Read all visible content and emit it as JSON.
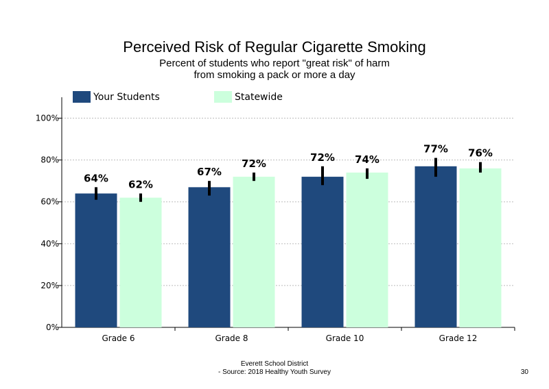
{
  "title": "Perceived Risk of Regular Cigarette Smoking",
  "subtitle_lines": [
    "Percent of students  who report \"great risk\" of harm",
    "from smoking  a pack or more  a day"
  ],
  "footer": {
    "line1": "Everett School District",
    "line2": "- Source: 2018 Healthy  Youth Survey"
  },
  "page_number": "30",
  "colors": {
    "your_students": "#1f497d",
    "statewide": "#ccffdd",
    "error_bar": "#000000",
    "grid": "#bbbbbb"
  },
  "chart_data": {
    "type": "bar",
    "categories": [
      "Grade 6",
      "Grade 8",
      "Grade 10",
      "Grade 12"
    ],
    "series": [
      {
        "name": "Your Students",
        "values": [
          64,
          67,
          72,
          77
        ],
        "labels": [
          "64%",
          "67%",
          "72%",
          "77%"
        ],
        "error_low": [
          61,
          63,
          68,
          72
        ],
        "error_high": [
          67,
          70,
          77,
          81
        ]
      },
      {
        "name": "Statewide",
        "values": [
          62,
          72,
          74,
          76
        ],
        "labels": [
          "62%",
          "72%",
          "74%",
          "76%"
        ],
        "error_low": [
          60,
          70,
          71,
          74
        ],
        "error_high": [
          64,
          74,
          76,
          79
        ]
      }
    ],
    "ylim": [
      0,
      110
    ],
    "yticks": [
      0,
      20,
      40,
      60,
      80,
      100
    ],
    "ytick_labels": [
      "0%",
      "20%",
      "40%",
      "60%",
      "80%",
      "100%"
    ],
    "grid": true,
    "legend_position": "top-left"
  }
}
